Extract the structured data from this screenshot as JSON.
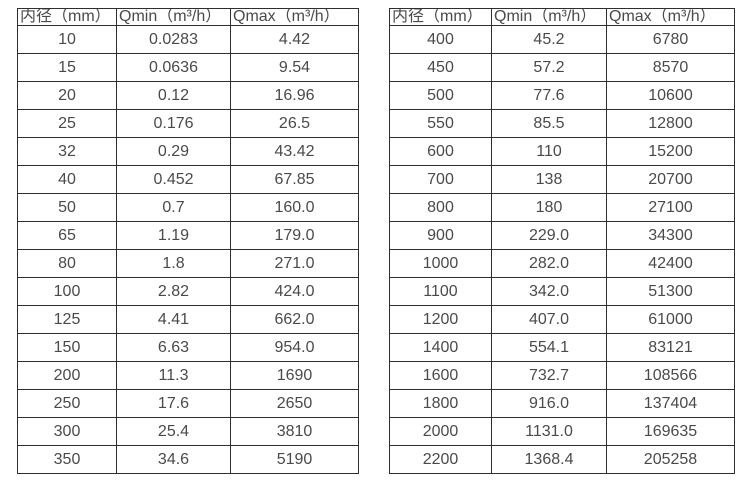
{
  "page": {
    "background_color": "#ffffff",
    "text_color": "#4a4a4a",
    "border_color": "#2e2e2e"
  },
  "tables": [
    {
      "name": "flow-range-table-small-diameters",
      "headers": [
        "内径（mm）",
        "Qmin（m³/h）",
        "Qmax（m³/h）"
      ],
      "rows": [
        [
          "10",
          "0.0283",
          "4.42"
        ],
        [
          "15",
          "0.0636",
          "9.54"
        ],
        [
          "20",
          "0.12",
          "16.96"
        ],
        [
          "25",
          "0.176",
          "26.5"
        ],
        [
          "32",
          "0.29",
          "43.42"
        ],
        [
          "40",
          "0.452",
          "67.85"
        ],
        [
          "50",
          "0.7",
          "160.0"
        ],
        [
          "65",
          "1.19",
          "179.0"
        ],
        [
          "80",
          "1.8",
          "271.0"
        ],
        [
          "100",
          "2.82",
          "424.0"
        ],
        [
          "125",
          "4.41",
          "662.0"
        ],
        [
          "150",
          "6.63",
          "954.0"
        ],
        [
          "200",
          "11.3",
          "1690"
        ],
        [
          "250",
          "17.6",
          "2650"
        ],
        [
          "300",
          "25.4",
          "3810"
        ],
        [
          "350",
          "34.6",
          "5190"
        ]
      ]
    },
    {
      "name": "flow-range-table-large-diameters",
      "headers": [
        "内径（mm）",
        "Qmin（m³/h）",
        "Qmax（m³/h）"
      ],
      "rows": [
        [
          "400",
          "45.2",
          "6780"
        ],
        [
          "450",
          "57.2",
          "8570"
        ],
        [
          "500",
          "77.6",
          "10600"
        ],
        [
          "550",
          "85.5",
          "12800"
        ],
        [
          "600",
          "110",
          "15200"
        ],
        [
          "700",
          "138",
          "20700"
        ],
        [
          "800",
          "180",
          "27100"
        ],
        [
          "900",
          "229.0",
          "34300"
        ],
        [
          "1000",
          "282.0",
          "42400"
        ],
        [
          "1100",
          "342.0",
          "51300"
        ],
        [
          "1200",
          "407.0",
          "61000"
        ],
        [
          "1400",
          "554.1",
          "83121"
        ],
        [
          "1600",
          "732.7",
          "108566"
        ],
        [
          "1800",
          "916.0",
          "137404"
        ],
        [
          "2000",
          "1131.0",
          "169635"
        ],
        [
          "2200",
          "1368.4",
          "205258"
        ]
      ]
    }
  ],
  "column_semantics": [
    "inner-diameter-mm",
    "qmin-m3h",
    "qmax-m3h"
  ]
}
